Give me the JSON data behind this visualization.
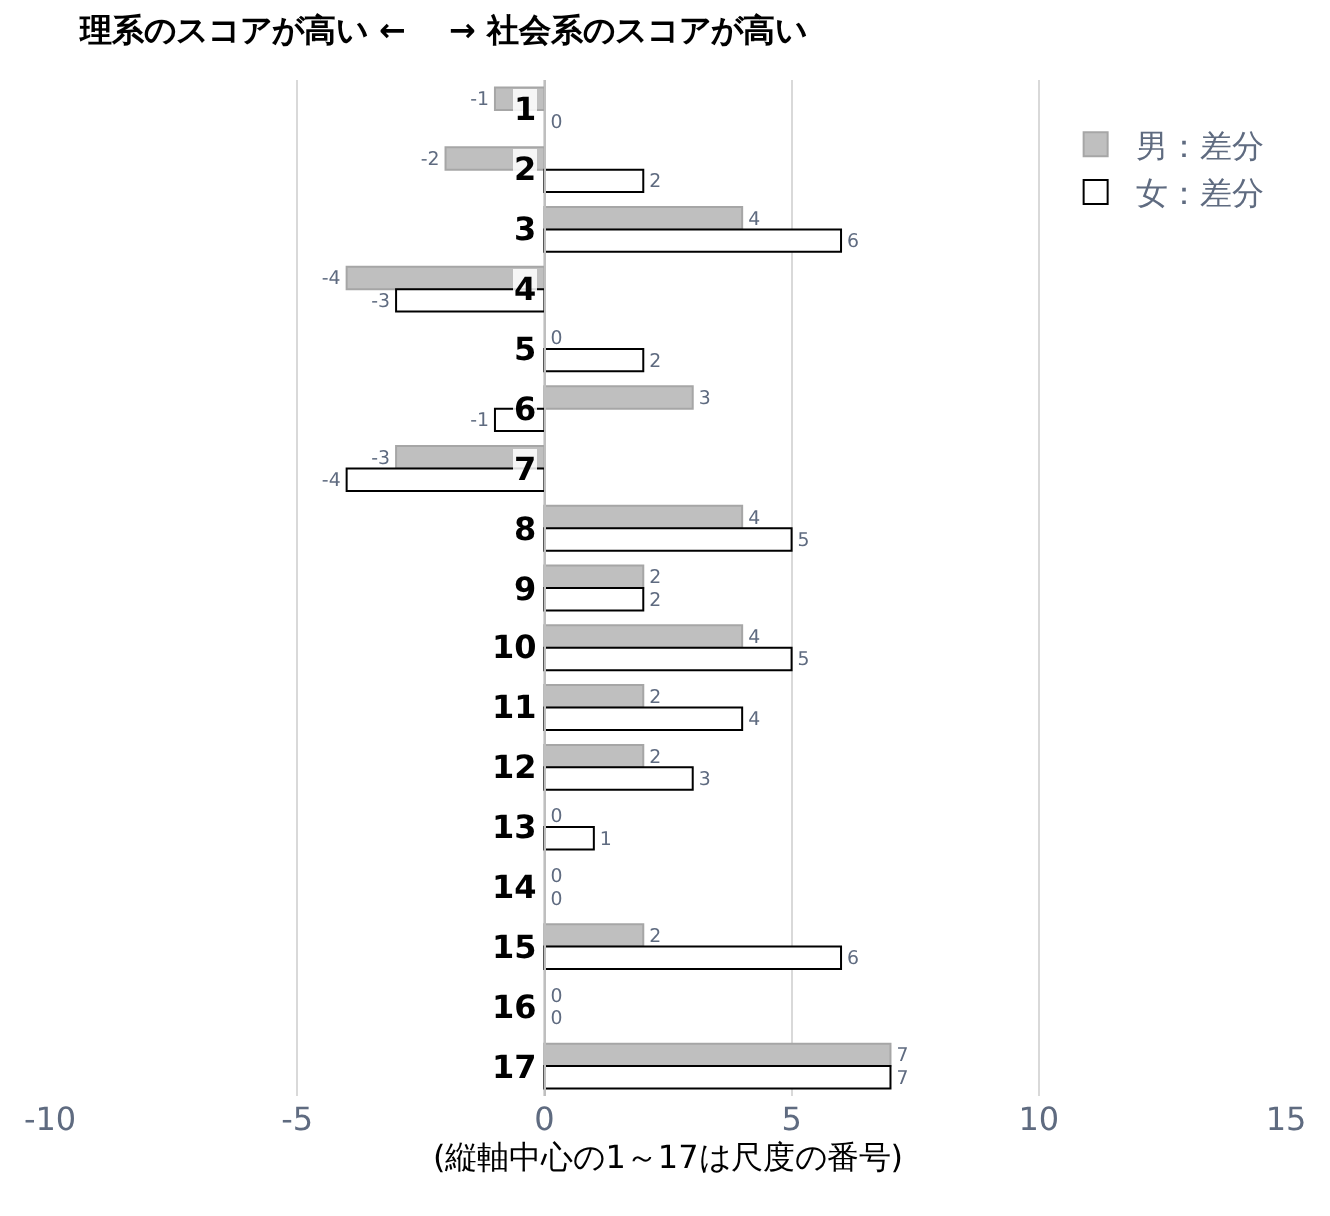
{
  "chart_data": {
    "type": "bar",
    "orientation": "horizontal",
    "title": "理系のスコアが高い ←　 → 社会系のスコアが高い",
    "xlabel": "(縦軸中心の1～17は尺度の番号)",
    "categories": [
      "1",
      "2",
      "3",
      "4",
      "5",
      "6",
      "7",
      "8",
      "9",
      "10",
      "11",
      "12",
      "13",
      "14",
      "15",
      "16",
      "17"
    ],
    "series": [
      {
        "name": "男：差分",
        "color": "#bfbfbf",
        "values": [
          -1,
          -2,
          4,
          -4,
          0,
          3,
          -3,
          4,
          2,
          4,
          2,
          2,
          0,
          0,
          2,
          0,
          7
        ]
      },
      {
        "name": "女：差分",
        "color": "#ffffff",
        "values": [
          0,
          2,
          6,
          -3,
          2,
          -1,
          -4,
          5,
          2,
          5,
          4,
          3,
          1,
          0,
          6,
          0,
          7
        ]
      }
    ],
    "xlim": [
      -10,
      15
    ],
    "xticks": [
      -10,
      -5,
      0,
      5,
      10,
      15
    ],
    "grid": "x",
    "legend": "top right",
    "data_labels": true
  }
}
